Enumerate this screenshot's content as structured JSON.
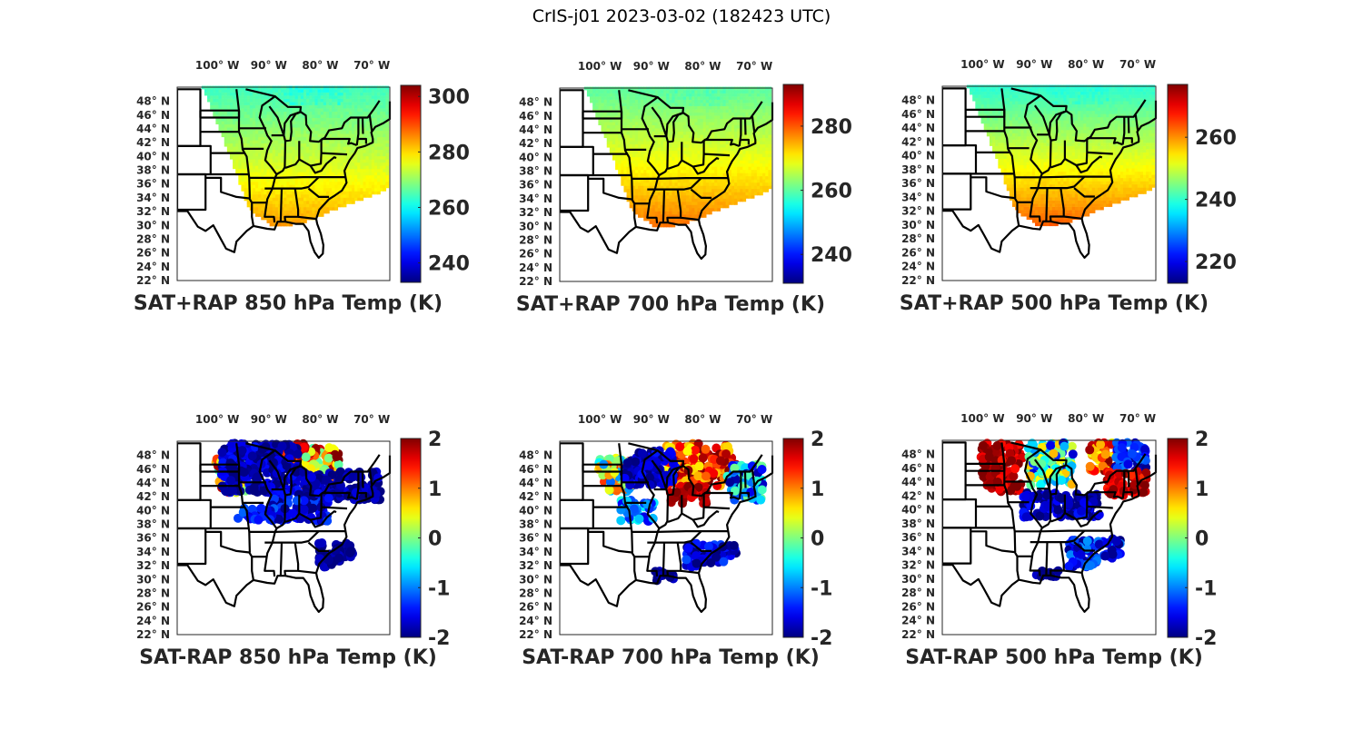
{
  "figure_title": "CrIS-j01 2023-03-02 (182423 UTC)",
  "chart_data": [
    {
      "type": "heatmap",
      "title": "SAT+RAP 850 hPa Temp (K)",
      "colormap": "jet",
      "clim": [
        233,
        304
      ],
      "colorbar_ticks": [
        240,
        260,
        280,
        300
      ],
      "xticks": [
        "100° W",
        "90° W",
        "80° W",
        "70° W"
      ],
      "xtick_values": [
        -100,
        -90,
        -80,
        -70
      ],
      "yticks": [
        "48° N",
        "46° N",
        "44° N",
        "42° N",
        "40° N",
        "38° N",
        "36° N",
        "34° N",
        "32° N",
        "30° N",
        "28° N",
        "26° N",
        "24° N",
        "22° N"
      ],
      "ytick_values": [
        48,
        46,
        44,
        42,
        40,
        38,
        36,
        34,
        32,
        30,
        28,
        26,
        24,
        22
      ],
      "field": "gradient",
      "field_north": 264,
      "field_south": 285,
      "field_noise": 2,
      "cold_patch": 258
    },
    {
      "type": "heatmap",
      "title": "SAT+RAP 700 hPa Temp (K)",
      "colormap": "jet",
      "clim": [
        231,
        293
      ],
      "colorbar_ticks": [
        240,
        260,
        280
      ],
      "xticks": [
        "100° W",
        "90° W",
        "80° W",
        "70° W"
      ],
      "xtick_values": [
        -100,
        -90,
        -80,
        -70
      ],
      "yticks": [
        "48° N",
        "46° N",
        "44° N",
        "42° N",
        "40° N",
        "38° N",
        "36° N",
        "34° N",
        "32° N",
        "30° N",
        "28° N",
        "26° N",
        "24° N",
        "22° N"
      ],
      "ytick_values": [
        48,
        46,
        44,
        42,
        40,
        38,
        36,
        34,
        32,
        30,
        28,
        26,
        24,
        22
      ],
      "field": "gradient",
      "field_north": 260,
      "field_south": 279,
      "field_noise": 1.5,
      "cold_patch": 257
    },
    {
      "type": "heatmap",
      "title": "SAT+RAP 500 hPa Temp (K)",
      "colormap": "jet",
      "clim": [
        213,
        277
      ],
      "colorbar_ticks": [
        220,
        240,
        260
      ],
      "xticks": [
        "100° W",
        "90° W",
        "80° W",
        "70° W"
      ],
      "xtick_values": [
        -100,
        -90,
        -80,
        -70
      ],
      "yticks": [
        "48° N",
        "46° N",
        "44° N",
        "42° N",
        "40° N",
        "38° N",
        "36° N",
        "34° N",
        "32° N",
        "30° N",
        "28° N",
        "26° N",
        "24° N",
        "22° N"
      ],
      "ytick_values": [
        48,
        46,
        44,
        42,
        40,
        38,
        36,
        34,
        32,
        30,
        28,
        26,
        24,
        22
      ],
      "field": "gradient",
      "field_north": 240,
      "field_south": 264,
      "field_noise": 1.5,
      "cold_patch": 238
    },
    {
      "type": "scatter",
      "title": "SAT-RAP 850 hPa Temp (K)",
      "colormap": "jet",
      "clim": [
        -2,
        2
      ],
      "colorbar_ticks": [
        -2,
        -1,
        0,
        1,
        2
      ],
      "xticks": [
        "100° W",
        "90° W",
        "80° W",
        "70° W"
      ],
      "xtick_values": [
        -100,
        -90,
        -80,
        -70
      ],
      "yticks": [
        "48° N",
        "46° N",
        "44° N",
        "42° N",
        "40° N",
        "38° N",
        "36° N",
        "34° N",
        "32° N",
        "30° N",
        "28° N",
        "26° N",
        "24° N",
        "22° N"
      ],
      "ytick_values": [
        48,
        46,
        44,
        42,
        40,
        38,
        36,
        34,
        32,
        30,
        28,
        26,
        24,
        22
      ],
      "field": "diff",
      "regions": [
        {
          "lon": [
            -101,
            -94
          ],
          "lat": [
            42,
            47
          ],
          "value": 0.8,
          "spread": 1.5
        },
        {
          "lon": [
            -91,
            -84
          ],
          "lat": [
            45,
            49
          ],
          "value": 1.7,
          "spread": 0.6
        },
        {
          "lon": [
            -84,
            -77
          ],
          "lat": [
            42.5,
            48.5
          ],
          "value": 1.0,
          "spread": 1.2
        },
        {
          "lon": [
            -100,
            -85
          ],
          "lat": [
            42,
            49
          ],
          "value": -1.8,
          "spread": 0.4
        },
        {
          "lon": [
            -84,
            -69
          ],
          "lat": [
            41,
            45
          ],
          "value": -1.9,
          "spread": 0.3
        },
        {
          "lon": [
            -90,
            -79
          ],
          "lat": [
            38,
            42
          ],
          "value": -1.6,
          "spread": 0.5
        },
        {
          "lon": [
            -97,
            -90
          ],
          "lat": [
            38,
            40
          ],
          "value": -1.5,
          "spread": 0.4
        },
        {
          "lon": [
            -81,
            -74
          ],
          "lat": [
            31.5,
            35
          ],
          "value": -1.9,
          "spread": 0.2
        }
      ]
    },
    {
      "type": "scatter",
      "title": "SAT-RAP 700 hPa Temp (K)",
      "colormap": "jet",
      "clim": [
        -2,
        2
      ],
      "colorbar_ticks": [
        -2,
        -1,
        0,
        1,
        2
      ],
      "xticks": [
        "100° W",
        "90° W",
        "80° W",
        "70° W"
      ],
      "xtick_values": [
        -100,
        -90,
        -80,
        -70
      ],
      "yticks": [
        "48° N",
        "46° N",
        "44° N",
        "42° N",
        "40° N",
        "38° N",
        "36° N",
        "34° N",
        "32° N",
        "30° N",
        "28° N",
        "26° N",
        "24° N",
        "22° N"
      ],
      "ytick_values": [
        48,
        46,
        44,
        42,
        40,
        38,
        36,
        34,
        32,
        30,
        28,
        26,
        24,
        22
      ],
      "field": "diff",
      "regions": [
        {
          "lon": [
            -101,
            -94
          ],
          "lat": [
            42,
            47
          ],
          "value": 0.2,
          "spread": 1.3
        },
        {
          "lon": [
            -88,
            -74
          ],
          "lat": [
            43,
            49
          ],
          "value": 1.3,
          "spread": 0.8
        },
        {
          "lon": [
            -87,
            -80
          ],
          "lat": [
            40.5,
            43
          ],
          "value": 1.8,
          "spread": 0.3
        },
        {
          "lon": [
            -96,
            -86
          ],
          "lat": [
            43,
            48
          ],
          "value": -1.8,
          "spread": 0.4
        },
        {
          "lon": [
            -76,
            -69
          ],
          "lat": [
            41,
            46
          ],
          "value": -1.0,
          "spread": 1.0
        },
        {
          "lon": [
            -97,
            -90
          ],
          "lat": [
            38,
            41
          ],
          "value": -1.0,
          "spread": 0.7
        },
        {
          "lon": [
            -84,
            -74
          ],
          "lat": [
            31.5,
            35
          ],
          "value": -1.7,
          "spread": 0.5
        },
        {
          "lon": [
            -90,
            -86
          ],
          "lat": [
            29.5,
            31
          ],
          "value": -1.9,
          "spread": 0.2
        }
      ]
    },
    {
      "type": "scatter",
      "title": "SAT-RAP 500 hPa Temp (K)",
      "colormap": "jet",
      "clim": [
        -2,
        2
      ],
      "colorbar_ticks": [
        -2,
        -1,
        0,
        1,
        2
      ],
      "xticks": [
        "100° W",
        "90° W",
        "80° W",
        "70° W"
      ],
      "xtick_values": [
        -100,
        -90,
        -80,
        -70
      ],
      "yticks": [
        "48° N",
        "46° N",
        "44° N",
        "42° N",
        "40° N",
        "38° N",
        "36° N",
        "34° N",
        "32° N",
        "30° N",
        "28° N",
        "26° N",
        "24° N",
        "22° N"
      ],
      "ytick_values": [
        48,
        46,
        44,
        42,
        40,
        38,
        36,
        34,
        32,
        30,
        28,
        26,
        24,
        22
      ],
      "field": "diff",
      "regions": [
        {
          "lon": [
            -101,
            -93
          ],
          "lat": [
            42,
            49
          ],
          "value": 1.8,
          "spread": 0.4
        },
        {
          "lon": [
            -92,
            -83
          ],
          "lat": [
            43,
            49
          ],
          "value": -0.5,
          "spread": 1.3
        },
        {
          "lon": [
            -80,
            -74
          ],
          "lat": [
            45,
            49
          ],
          "value": 1.2,
          "spread": 0.8
        },
        {
          "lon": [
            -75,
            -69
          ],
          "lat": [
            45,
            49
          ],
          "value": -1.5,
          "spread": 0.5
        },
        {
          "lon": [
            -77,
            -69
          ],
          "lat": [
            41.5,
            45
          ],
          "value": 1.7,
          "spread": 0.4
        },
        {
          "lon": [
            -93,
            -78
          ],
          "lat": [
            38.5,
            42
          ],
          "value": -1.8,
          "spread": 0.4
        },
        {
          "lon": [
            -84,
            -74
          ],
          "lat": [
            31.5,
            35.5
          ],
          "value": -1.5,
          "spread": 0.6
        },
        {
          "lon": [
            -91,
            -85
          ],
          "lat": [
            29.5,
            31
          ],
          "value": -1.9,
          "spread": 0.2
        }
      ]
    }
  ]
}
